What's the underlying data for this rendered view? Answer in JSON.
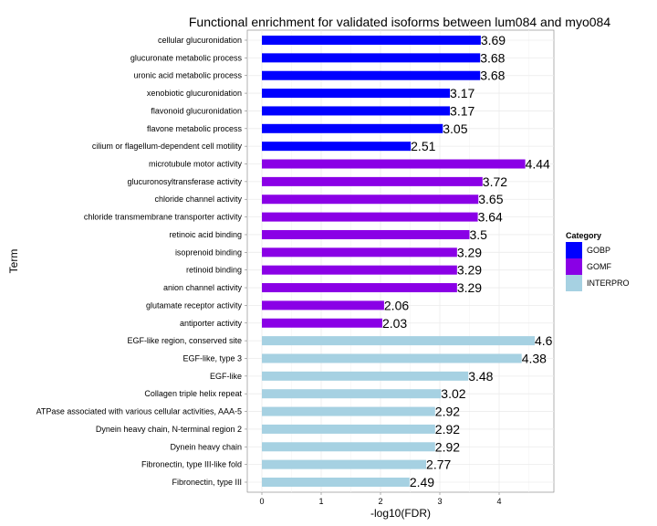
{
  "chart_data": {
    "type": "bar",
    "orientation": "horizontal",
    "title": "Functional enrichment for validated isoforms between lum084 and myo084",
    "xlabel": "-log10(FDR)",
    "ylabel": "Term",
    "xlim": [
      0,
      4.6
    ],
    "xticks": [
      0,
      1,
      2,
      3,
      4
    ],
    "grid": true,
    "legend": {
      "title": "Category",
      "placement": "right",
      "entries": [
        {
          "name": "GOBP",
          "color": "#0000ff"
        },
        {
          "name": "GOMF",
          "color": "#8a00e6"
        },
        {
          "name": "INTERPRO",
          "color": "#a6d1e2"
        }
      ]
    },
    "categories": [
      "cellular glucuronidation",
      "glucuronate metabolic process",
      "uronic acid metabolic process",
      "xenobiotic glucuronidation",
      "flavonoid glucuronidation",
      "flavone metabolic process",
      "cilium or flagellum-dependent cell motility",
      "microtubule motor activity",
      "glucuronosyltransferase activity",
      "chloride channel activity",
      "chloride transmembrane transporter activity",
      "retinoic acid binding",
      "isoprenoid binding",
      "retinoid binding",
      "anion channel activity",
      "glutamate receptor activity",
      "antiporter activity",
      "EGF-like region, conserved site",
      "EGF-like, type 3",
      "EGF-like",
      "Collagen triple helix repeat",
      "ATPase associated with various cellular activities, AAA-5",
      "Dynein heavy chain, N-terminal region 2",
      "Dynein heavy chain",
      "Fibronectin, type III-like fold",
      "Fibronectin, type III"
    ],
    "values": [
      3.69,
      3.68,
      3.68,
      3.17,
      3.17,
      3.05,
      2.51,
      4.44,
      3.72,
      3.65,
      3.64,
      3.5,
      3.29,
      3.29,
      3.29,
      2.06,
      2.03,
      4.6,
      4.38,
      3.48,
      3.02,
      2.92,
      2.92,
      2.92,
      2.77,
      2.49
    ],
    "value_labels": [
      "3.69",
      "3.68",
      "3.68",
      "3.17",
      "3.17",
      "3.05",
      "2.51",
      "4.44",
      "3.72",
      "3.65",
      "3.64",
      "3.5",
      "3.29",
      "3.29",
      "3.29",
      "2.06",
      "2.03",
      "4.6",
      "4.38",
      "3.48",
      "3.02",
      "2.92",
      "2.92",
      "2.92",
      "2.77",
      "2.49"
    ],
    "bar_category": [
      "GOBP",
      "GOBP",
      "GOBP",
      "GOBP",
      "GOBP",
      "GOBP",
      "GOBP",
      "GOMF",
      "GOMF",
      "GOMF",
      "GOMF",
      "GOMF",
      "GOMF",
      "GOMF",
      "GOMF",
      "GOMF",
      "GOMF",
      "INTERPRO",
      "INTERPRO",
      "INTERPRO",
      "INTERPRO",
      "INTERPRO",
      "INTERPRO",
      "INTERPRO",
      "INTERPRO",
      "INTERPRO"
    ]
  }
}
